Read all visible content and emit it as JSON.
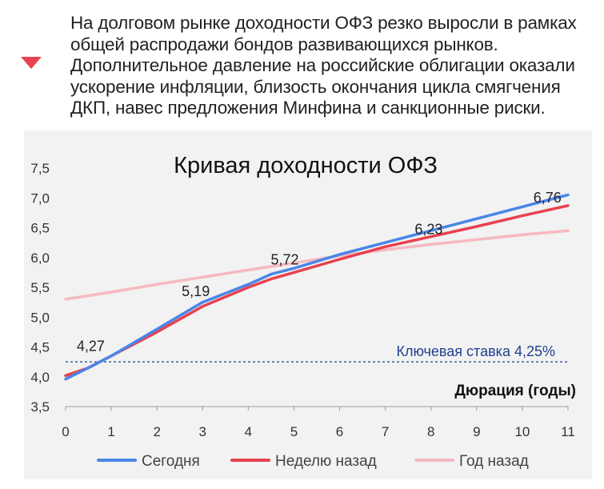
{
  "header": {
    "text": "На долговом рынке доходности ОФЗ резко выросли в рамках общей распродажи бондов развивающихся рынков. Дополнительное давление на российские облигации оказали ускорение инфляции, близость окончания цикла смягчения ДКП, навес предложения Минфина и санкционные риски.",
    "marker_color": "#e8414f"
  },
  "chart_data": {
    "type": "line",
    "title": "Кривая доходности ОФЗ",
    "xlabel": "Дюрация (годы)",
    "ylabel": "",
    "xlim": [
      0,
      11
    ],
    "ylim": [
      3.5,
      7.5
    ],
    "x_ticks": [
      "0",
      "1",
      "2",
      "3",
      "4",
      "5",
      "6",
      "7",
      "8",
      "9",
      "10",
      "11"
    ],
    "y_ticks": [
      "7,5",
      "7,0",
      "6,5",
      "6,0",
      "5,5",
      "5,0",
      "4,5",
      "4,0",
      "3,5"
    ],
    "grid": false,
    "legend_position": "bottom",
    "series": [
      {
        "name": "Сегодня",
        "color": "#4a86e8",
        "points": [
          [
            0,
            3.96
          ],
          [
            0.5,
            4.15
          ],
          [
            1,
            4.35
          ],
          [
            2,
            4.8
          ],
          [
            3,
            5.25
          ],
          [
            4,
            5.55
          ],
          [
            4.5,
            5.72
          ],
          [
            5,
            5.82
          ],
          [
            6,
            6.05
          ],
          [
            7,
            6.25
          ],
          [
            8,
            6.45
          ],
          [
            9,
            6.65
          ],
          [
            10,
            6.85
          ],
          [
            11,
            7.05
          ]
        ]
      },
      {
        "name": "Неделю назад",
        "color": "#e8414f",
        "points": [
          [
            0,
            4.02
          ],
          [
            0.5,
            4.15
          ],
          [
            1,
            4.35
          ],
          [
            2,
            4.75
          ],
          [
            3,
            5.18
          ],
          [
            4,
            5.5
          ],
          [
            4.5,
            5.64
          ],
          [
            5,
            5.75
          ],
          [
            6,
            5.97
          ],
          [
            7,
            6.18
          ],
          [
            8,
            6.35
          ],
          [
            9,
            6.52
          ],
          [
            10,
            6.7
          ],
          [
            11,
            6.87
          ]
        ]
      },
      {
        "name": "Год назад",
        "color": "#f6b9c0",
        "points": [
          [
            0,
            5.3
          ],
          [
            1,
            5.42
          ],
          [
            2,
            5.55
          ],
          [
            3,
            5.67
          ],
          [
            4,
            5.79
          ],
          [
            5,
            5.91
          ],
          [
            6,
            6.03
          ],
          [
            7,
            6.13
          ],
          [
            8,
            6.22
          ],
          [
            9,
            6.3
          ],
          [
            10,
            6.38
          ],
          [
            11,
            6.45
          ]
        ]
      }
    ],
    "data_labels": [
      {
        "x": 0.55,
        "y": 4.27,
        "label": "4,27"
      },
      {
        "x": 2.85,
        "y": 5.19,
        "label": "5,19"
      },
      {
        "x": 4.8,
        "y": 5.72,
        "label": "5,72"
      },
      {
        "x": 7.95,
        "y": 6.23,
        "label": "6,23"
      },
      {
        "x": 10.55,
        "y": 6.76,
        "label": "6,76"
      }
    ],
    "reference_line": {
      "y": 4.25,
      "label": "Ключевая ставка 4,25%",
      "color": "#1f3f8f"
    }
  }
}
